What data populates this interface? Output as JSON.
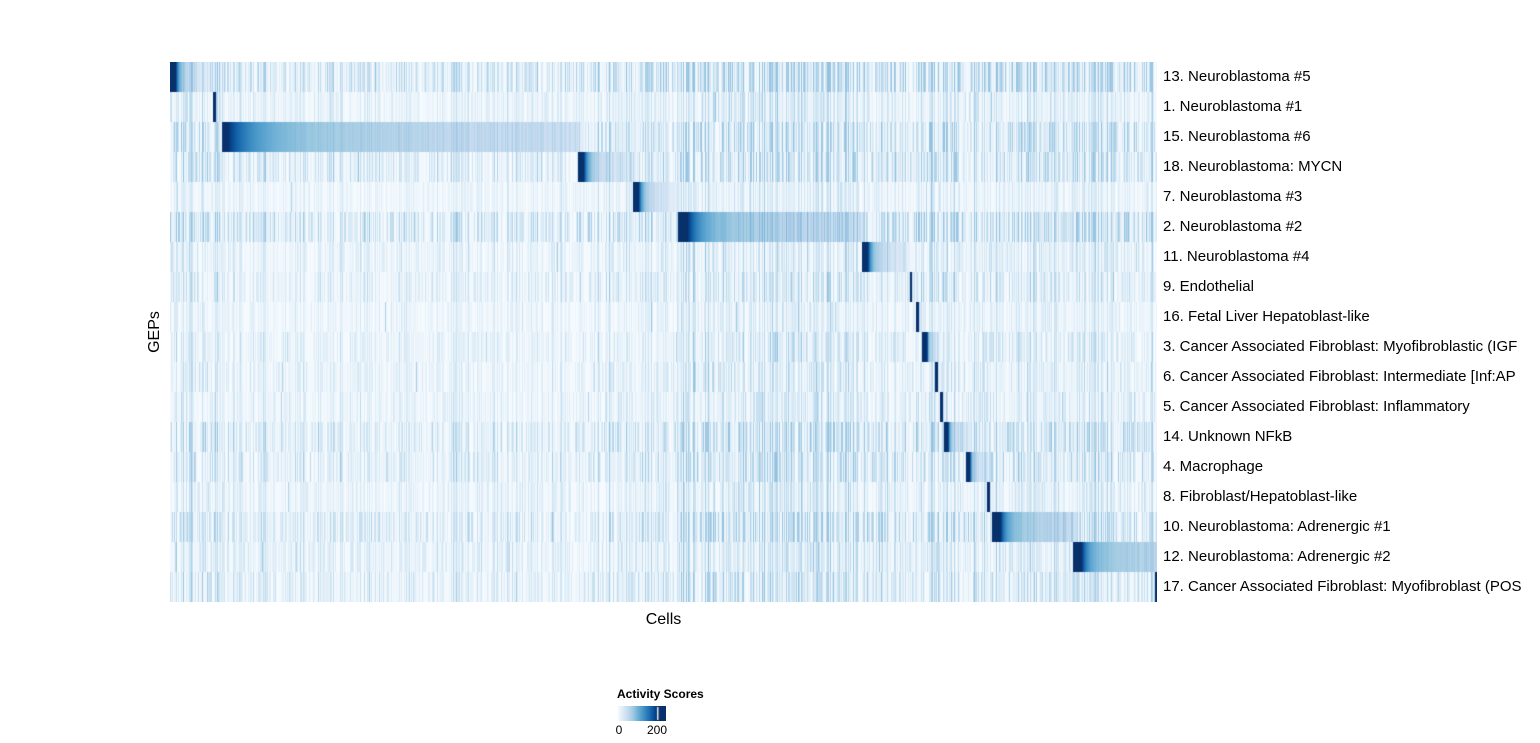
{
  "chart_data": {
    "type": "heatmap",
    "title": "",
    "xlabel": "Cells",
    "ylabel": "GEPs",
    "legend_position": "bottom",
    "grid": false,
    "value_range": [
      0,
      200
    ],
    "colorbar": {
      "title": "Activity Scores",
      "min_label": "0",
      "max_label": "200",
      "max_tick_frac": 0.82
    },
    "palette": {
      "name": "Blues",
      "low": "#f7fbff",
      "high": "#08306b",
      "stops": [
        [
          0.0,
          "#f7fbff"
        ],
        [
          0.13,
          "#deebf7"
        ],
        [
          0.26,
          "#c6dbef"
        ],
        [
          0.39,
          "#9ecae1"
        ],
        [
          0.52,
          "#6baed6"
        ],
        [
          0.65,
          "#4292c6"
        ],
        [
          0.78,
          "#2171b5"
        ],
        [
          0.9,
          "#08519c"
        ],
        [
          1.0,
          "#08306b"
        ]
      ]
    },
    "rows": [
      {
        "label": "13. Neuroblastoma #5",
        "block": [
          0.0,
          0.0456
        ],
        "head": 0.12,
        "tail": 0.05,
        "d2": 2.5,
        "noise": 0.6
      },
      {
        "label": "1. Neuroblastoma #1",
        "block": [
          0.0436,
          0.0486
        ],
        "head": 0.5,
        "tail": 0.05,
        "d2": 2.5,
        "noise": 0.3
      },
      {
        "label": "15. Neuroblastoma #6",
        "block": [
          0.0527,
          0.4134
        ],
        "head": 0.015,
        "tail": 0.06,
        "d2": 0.9,
        "noise": 0.5
      },
      {
        "label": "18. Neuroblastoma: MYCN",
        "block": [
          0.4134,
          0.4681
        ],
        "head": 0.1,
        "tail": 0.05,
        "d2": 2.0,
        "noise": 0.5
      },
      {
        "label": "7. Neuroblastoma #3",
        "block": [
          0.4691,
          0.5137
        ],
        "head": 0.12,
        "tail": 0.05,
        "d2": 2.0,
        "noise": 0.22
      },
      {
        "label": "2. Neuroblastoma #2",
        "block": [
          0.5147,
          0.6999
        ],
        "head": 0.05,
        "tail": 0.05,
        "d2": 0.9,
        "noise": 0.6
      },
      {
        "label": "11. Neuroblastoma #4",
        "block": [
          0.7011,
          0.7477
        ],
        "head": 0.12,
        "tail": 0.05,
        "d2": 2.0,
        "noise": 0.3
      },
      {
        "label": "9. Endothelial",
        "block": [
          0.7497,
          0.7528
        ],
        "head": 0.5,
        "tail": 0.05,
        "d2": 2.5,
        "noise": 0.35
      },
      {
        "label": "16. Fetal Liver Hepatoblast-like",
        "block": [
          0.7558,
          0.7619
        ],
        "head": 0.35,
        "tail": 0.05,
        "d2": 2.5,
        "noise": 0.22
      },
      {
        "label": "3. Cancer Associated Fibroblast: Myofibroblastic (IGF",
        "block": [
          0.7619,
          0.7781
        ],
        "head": 0.3,
        "tail": 0.08,
        "d2": 2.2,
        "noise": 0.3
      },
      {
        "label": "6. Cancer Associated Fibroblast: Intermediate [Inf:AP",
        "block": [
          0.7751,
          0.7791
        ],
        "head": 0.5,
        "tail": 0.05,
        "d2": 2.5,
        "noise": 0.3
      },
      {
        "label": "5. Cancer Associated Fibroblast: Inflammatory",
        "block": [
          0.7801,
          0.7842
        ],
        "head": 0.5,
        "tail": 0.05,
        "d2": 2.5,
        "noise": 0.28
      },
      {
        "label": "14. Unknown NFkB",
        "block": [
          0.7842,
          0.8055
        ],
        "head": 0.18,
        "tail": 0.07,
        "d2": 2.0,
        "noise": 0.5
      },
      {
        "label": "4. Macrophage",
        "block": [
          0.8065,
          0.8267
        ],
        "head": 0.18,
        "tail": 0.07,
        "d2": 2.0,
        "noise": 0.45
      },
      {
        "label": "8. Fibroblast/Hepatoblast-like",
        "block": [
          0.8277,
          0.8318
        ],
        "head": 0.5,
        "tail": 0.05,
        "d2": 2.5,
        "noise": 0.3
      },
      {
        "label": "10. Neuroblastoma: Adrenergic #1",
        "block": [
          0.8328,
          0.9149
        ],
        "head": 0.1,
        "tail": 0.08,
        "d2": 0.9,
        "noise": 0.5
      },
      {
        "label": "12. Neuroblastoma: Adrenergic #2",
        "block": [
          0.9149,
          1.0
        ],
        "head": 0.1,
        "tail": 0.12,
        "d2": 0.8,
        "noise": 0.35
      },
      {
        "label": "17. Cancer Associated Fibroblast: Myofibroblast (POS",
        "block": [
          0.998,
          1.0
        ],
        "head": 1.0,
        "tail": 0.05,
        "d2": 2.5,
        "noise": 0.4
      }
    ],
    "noise_regions": [
      {
        "from": 0.0,
        "to": 0.05,
        "factor": 1.15
      },
      {
        "from": 0.05,
        "to": 0.41,
        "factor": 0.75
      },
      {
        "from": 0.41,
        "to": 0.515,
        "factor": 0.95
      },
      {
        "from": 0.515,
        "to": 0.7,
        "factor": 1.35
      },
      {
        "from": 0.7,
        "to": 0.755,
        "factor": 0.95
      },
      {
        "from": 0.755,
        "to": 0.84,
        "factor": 1.3
      },
      {
        "from": 0.84,
        "to": 1.0,
        "factor": 1.15
      }
    ],
    "column_markers": [
      {
        "x": 0.0527,
        "alpha": 0.1
      },
      {
        "x": 0.5147,
        "alpha": 0.06
      }
    ]
  }
}
